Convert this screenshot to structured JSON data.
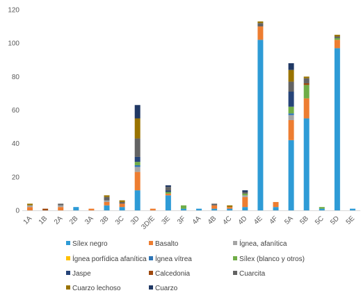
{
  "chart_data": {
    "type": "bar",
    "stacked": true,
    "title": "",
    "xlabel": "",
    "ylabel": "",
    "ylim": [
      0,
      120
    ],
    "yticks": [
      0,
      20,
      40,
      60,
      80,
      100,
      120
    ],
    "grid": false,
    "legend_position": "bottom",
    "categories": [
      "1A",
      "1B",
      "2A",
      "2B",
      "3A",
      "3B",
      "3C",
      "3D",
      "3D/E",
      "3E",
      "3F",
      "4A",
      "4B",
      "4C",
      "4D",
      "4E",
      "4F",
      "5A",
      "5B",
      "5C",
      "5D",
      "5E"
    ],
    "series": [
      {
        "name": "Sílex negro",
        "color": "#2E9BD6",
        "values": [
          0,
          0,
          0,
          2,
          0,
          3,
          2,
          12,
          0,
          9,
          1,
          1,
          1,
          1,
          2,
          102,
          2,
          42,
          55,
          1,
          97,
          1
        ]
      },
      {
        "name": "Basalto",
        "color": "#ED7D31",
        "values": [
          2,
          0,
          2,
          0,
          1,
          2,
          2,
          11,
          1,
          1,
          0,
          0,
          2,
          1,
          6,
          8,
          3,
          12,
          12,
          0,
          5,
          0
        ]
      },
      {
        "name": "Ígnea, afanítica",
        "color": "#A5A5A5",
        "values": [
          1,
          0,
          1,
          0,
          0,
          1,
          0,
          3,
          0,
          0,
          0,
          0,
          0,
          0,
          1,
          0,
          0,
          3,
          0,
          0,
          0,
          0
        ]
      },
      {
        "name": "Ígnea porfídica afanítica",
        "color": "#FFC000",
        "values": [
          0,
          0,
          0,
          0,
          0,
          0,
          0,
          0,
          0,
          0,
          0,
          0,
          0,
          0,
          0,
          0,
          0,
          0,
          0,
          0,
          0,
          0
        ]
      },
      {
        "name": "Ígnea vítrea",
        "color": "#2E75B6",
        "values": [
          0,
          0,
          0,
          0,
          0,
          0,
          0,
          1,
          0,
          0,
          0,
          0,
          0,
          0,
          0,
          0,
          0,
          1,
          0,
          0,
          0,
          0
        ]
      },
      {
        "name": "Sílex (blanco y otros)",
        "color": "#70AD47",
        "values": [
          0,
          0,
          0,
          0,
          0,
          0,
          0,
          2,
          0,
          1,
          2,
          0,
          0,
          0,
          1,
          0,
          0,
          4,
          8,
          1,
          1,
          0
        ]
      },
      {
        "name": "Jaspe",
        "color": "#264478",
        "values": [
          0,
          0,
          0,
          0,
          0,
          0,
          0,
          3,
          0,
          1,
          0,
          0,
          0,
          0,
          0,
          0,
          0,
          9,
          0,
          0,
          0,
          0
        ]
      },
      {
        "name": "Calcedonia",
        "color": "#9E480E",
        "values": [
          0,
          1,
          0,
          0,
          0,
          0,
          0,
          0,
          0,
          0,
          0,
          0,
          0,
          0,
          0,
          0,
          0,
          0,
          1,
          0,
          0,
          0
        ]
      },
      {
        "name": "Cuarcita",
        "color": "#636363",
        "values": [
          0,
          0,
          1,
          0,
          0,
          2,
          1,
          11,
          0,
          2,
          0,
          0,
          1,
          0,
          1,
          2,
          0,
          6,
          3,
          0,
          1,
          0
        ]
      },
      {
        "name": "Cuarzo lechoso",
        "color": "#997300",
        "values": [
          1,
          0,
          0,
          0,
          0,
          1,
          1,
          12,
          0,
          0,
          0,
          0,
          0,
          1,
          0,
          1,
          0,
          7,
          1,
          0,
          1,
          0
        ]
      },
      {
        "name": "Cuarzo",
        "color": "#203864",
        "values": [
          0,
          0,
          0,
          0,
          0,
          0,
          0,
          8,
          0,
          1,
          0,
          0,
          0,
          0,
          1,
          0,
          0,
          4,
          0,
          0,
          0,
          0
        ]
      }
    ]
  }
}
